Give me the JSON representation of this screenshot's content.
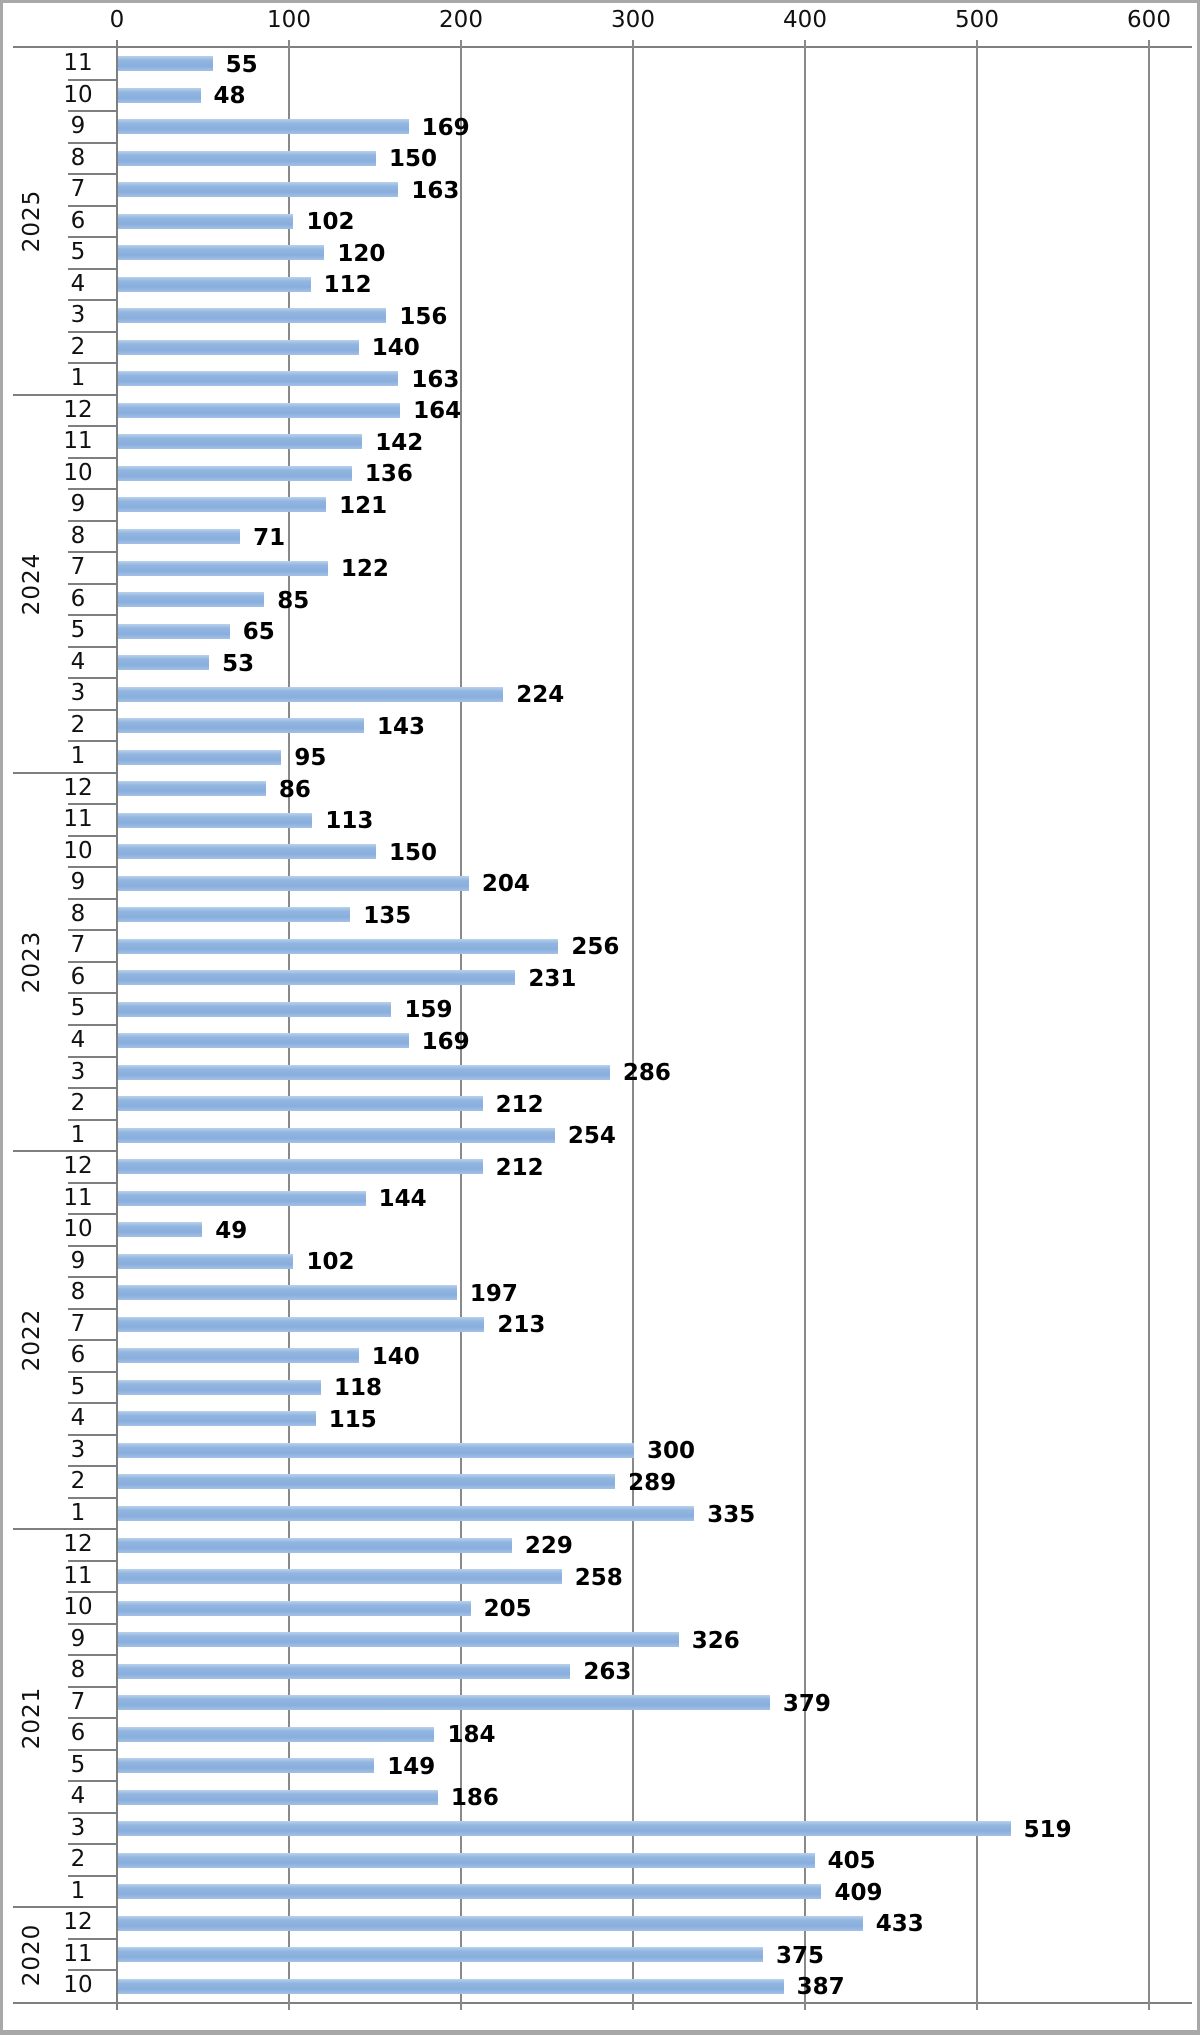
{
  "chart_data": {
    "type": "bar",
    "orientation": "horizontal",
    "title": "",
    "legend": "none",
    "value_axis": {
      "position": "top",
      "ticks": [
        0,
        100,
        200,
        300,
        400,
        500,
        600
      ],
      "min": 0,
      "max": 600,
      "gridlines": true
    },
    "category_axis": {
      "levels": [
        "year",
        "month"
      ],
      "order": "top-to-bottom"
    },
    "bar_labels_position": "outside-end",
    "groups": [
      {
        "year": "2025",
        "rows": [
          {
            "month": "11",
            "value": 55
          },
          {
            "month": "10",
            "value": 48
          },
          {
            "month": "9",
            "value": 169
          },
          {
            "month": "8",
            "value": 150
          },
          {
            "month": "7",
            "value": 163
          },
          {
            "month": "6",
            "value": 102
          },
          {
            "month": "5",
            "value": 120
          },
          {
            "month": "4",
            "value": 112
          },
          {
            "month": "3",
            "value": 156
          },
          {
            "month": "2",
            "value": 140
          },
          {
            "month": "1",
            "value": 163
          }
        ]
      },
      {
        "year": "2024",
        "rows": [
          {
            "month": "12",
            "value": 164
          },
          {
            "month": "11",
            "value": 142
          },
          {
            "month": "10",
            "value": 136
          },
          {
            "month": "9",
            "value": 121
          },
          {
            "month": "8",
            "value": 71
          },
          {
            "month": "7",
            "value": 122
          },
          {
            "month": "6",
            "value": 85
          },
          {
            "month": "5",
            "value": 65
          },
          {
            "month": "4",
            "value": 53
          },
          {
            "month": "3",
            "value": 224
          },
          {
            "month": "2",
            "value": 143
          },
          {
            "month": "1",
            "value": 95
          }
        ]
      },
      {
        "year": "2023",
        "rows": [
          {
            "month": "12",
            "value": 86
          },
          {
            "month": "11",
            "value": 113
          },
          {
            "month": "10",
            "value": 150
          },
          {
            "month": "9",
            "value": 204
          },
          {
            "month": "8",
            "value": 135
          },
          {
            "month": "7",
            "value": 256
          },
          {
            "month": "6",
            "value": 231
          },
          {
            "month": "5",
            "value": 159
          },
          {
            "month": "4",
            "value": 169
          },
          {
            "month": "3",
            "value": 286
          },
          {
            "month": "2",
            "value": 212
          },
          {
            "month": "1",
            "value": 254
          }
        ]
      },
      {
        "year": "2022",
        "rows": [
          {
            "month": "12",
            "value": 212
          },
          {
            "month": "11",
            "value": 144
          },
          {
            "month": "10",
            "value": 49
          },
          {
            "month": "9",
            "value": 102
          },
          {
            "month": "8",
            "value": 197
          },
          {
            "month": "7",
            "value": 213
          },
          {
            "month": "6",
            "value": 140
          },
          {
            "month": "5",
            "value": 118
          },
          {
            "month": "4",
            "value": 115
          },
          {
            "month": "3",
            "value": 300
          },
          {
            "month": "2",
            "value": 289
          },
          {
            "month": "1",
            "value": 335
          }
        ]
      },
      {
        "year": "2021",
        "rows": [
          {
            "month": "12",
            "value": 229
          },
          {
            "month": "11",
            "value": 258
          },
          {
            "month": "10",
            "value": 205
          },
          {
            "month": "9",
            "value": 326
          },
          {
            "month": "8",
            "value": 263
          },
          {
            "month": "7",
            "value": 379
          },
          {
            "month": "6",
            "value": 184
          },
          {
            "month": "5",
            "value": 149
          },
          {
            "month": "4",
            "value": 186
          },
          {
            "month": "3",
            "value": 519
          },
          {
            "month": "2",
            "value": 405
          },
          {
            "month": "1",
            "value": 409
          }
        ]
      },
      {
        "year": "2020",
        "rows": [
          {
            "month": "12",
            "value": 433
          },
          {
            "month": "11",
            "value": 375
          },
          {
            "month": "10",
            "value": 387
          }
        ]
      }
    ]
  },
  "colors": {
    "bar": "#8FB3DF",
    "bar_highlight": "#BAD1ED",
    "gridline": "#898989",
    "axis_line": "#7F7F7F",
    "text": "#111111",
    "value_label": "#000000",
    "frame_border": "#A8A8A8",
    "background": "#FFFFFF"
  }
}
